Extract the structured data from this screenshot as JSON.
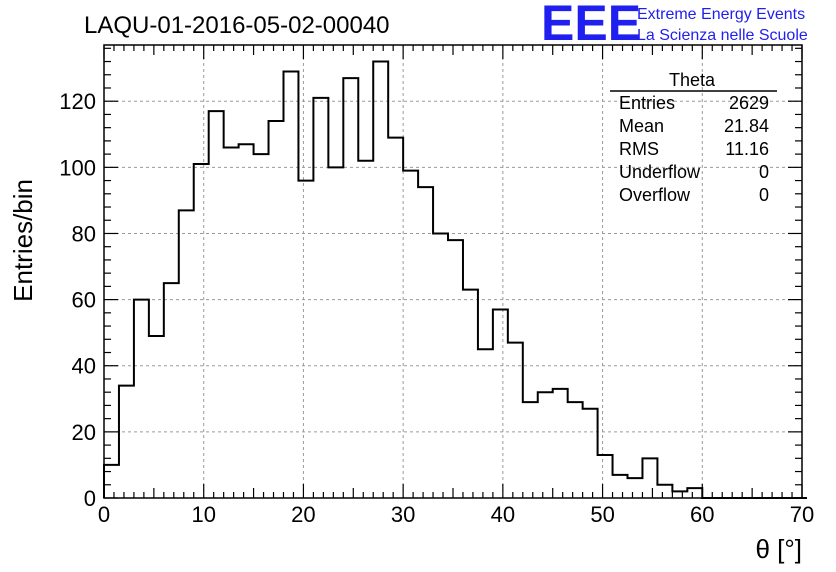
{
  "title": "LAQU-01-2016-05-02-00040",
  "logo": {
    "letters": "EEE",
    "line1": "Extreme Energy Events",
    "line2": "La Scienza nelle Scuole",
    "color": "#1f1ff0"
  },
  "stats_box": {
    "title": "Theta",
    "rows": [
      {
        "label": "Entries",
        "value": "2629"
      },
      {
        "label": "Mean",
        "value": "21.84"
      },
      {
        "label": "RMS",
        "value": "11.16"
      },
      {
        "label": "Underflow",
        "value": "0"
      },
      {
        "label": "Overflow",
        "value": "0"
      }
    ]
  },
  "chart_data": {
    "type": "histogram",
    "xlabel": "θ [°]",
    "ylabel": "Entries/bin",
    "xlim": [
      0,
      70
    ],
    "ylim": [
      0,
      137
    ],
    "grid": true,
    "x_ticks": [
      0,
      10,
      20,
      30,
      40,
      50,
      60,
      70
    ],
    "y_ticks": [
      0,
      20,
      40,
      60,
      80,
      100,
      120
    ],
    "bin_width": 1.5,
    "bin_edges_start": 0,
    "values": [
      10,
      34,
      60,
      49,
      65,
      87,
      101,
      117,
      106,
      107,
      104,
      114,
      129,
      96,
      121,
      100,
      127,
      102,
      132,
      109,
      99,
      94,
      80,
      78,
      63,
      45,
      57,
      47,
      29,
      32,
      33,
      29,
      27,
      13,
      7,
      6,
      12,
      4,
      2,
      3,
      0,
      0,
      0,
      0,
      0,
      0,
      0
    ]
  }
}
